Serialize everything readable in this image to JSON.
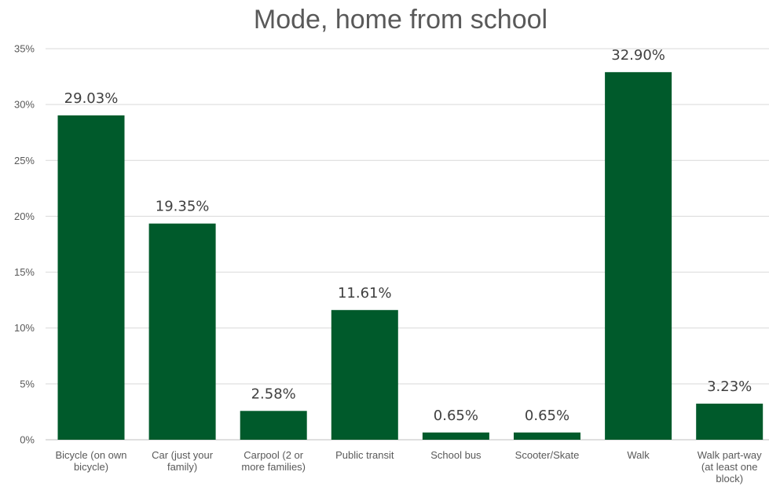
{
  "colors": {
    "bar": "#005a2b",
    "grid": "#d9d9d9",
    "axis_text": "#595959",
    "title_text": "#595959"
  },
  "chart_data": {
    "type": "bar",
    "title": "Mode, home from school",
    "xlabel": "",
    "ylabel": "",
    "ylim": [
      0,
      35
    ],
    "yticks": [
      "0%",
      "5%",
      "10%",
      "15%",
      "20%",
      "25%",
      "30%",
      "35%"
    ],
    "grid": true,
    "legend": "none",
    "categories": [
      [
        "Bicycle (on own",
        "bicycle)"
      ],
      [
        "Car (just your",
        "family)"
      ],
      [
        "Carpool (2 or",
        "more families)"
      ],
      [
        "Public transit"
      ],
      [
        "School bus"
      ],
      [
        "Scooter/Skate"
      ],
      [
        "Walk"
      ],
      [
        "Walk part-way",
        "(at least  one",
        "block)"
      ]
    ],
    "values": [
      29.03,
      19.35,
      2.58,
      11.61,
      0.65,
      0.65,
      32.9,
      3.23
    ],
    "data_labels": [
      "29.03%",
      "19.35%",
      "2.58%",
      "11.61%",
      "0.65%",
      "0.65%",
      "32.90%",
      "3.23%"
    ]
  }
}
